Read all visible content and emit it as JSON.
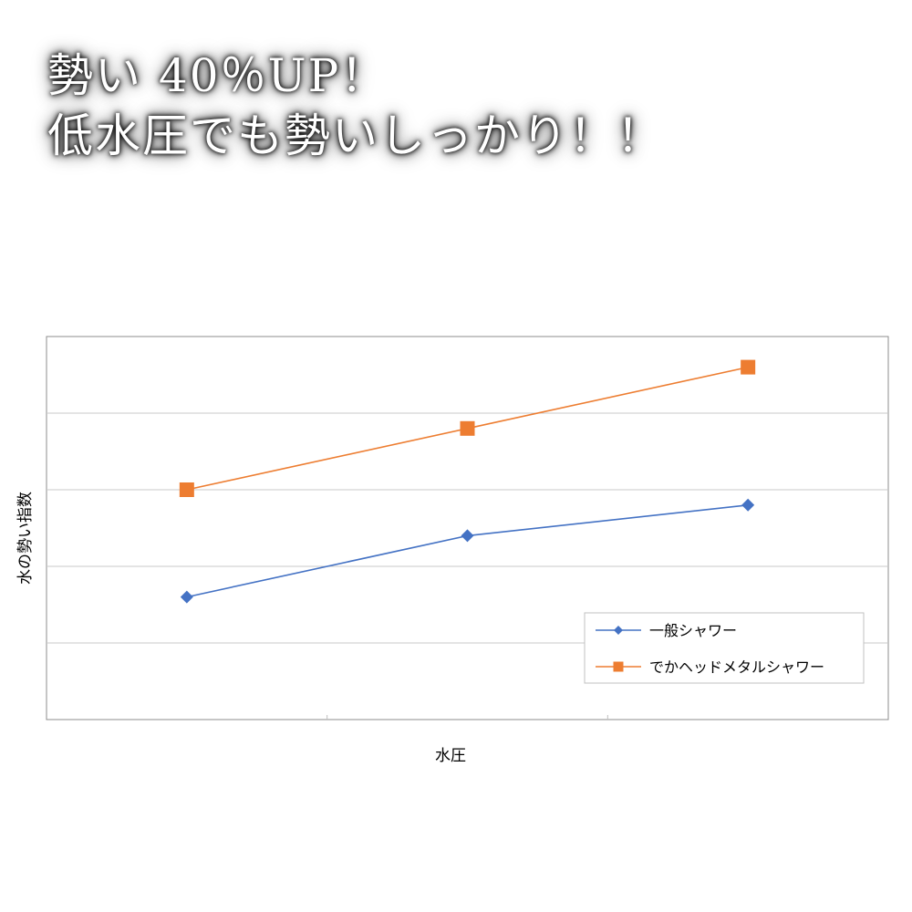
{
  "headline": {
    "line1": "勢い 40％UP！",
    "line2": "低水圧でも勢いしっかり！！"
  },
  "chart_data": {
    "type": "line",
    "title": "",
    "xlabel": "水圧",
    "ylabel": "水の勢い指数",
    "categories": [
      "",
      "",
      ""
    ],
    "ylim": [
      0,
      5
    ],
    "grid": true,
    "legend_position": "bottom-right",
    "series": [
      {
        "name": "一般シャワー",
        "values": [
          1.6,
          2.4,
          2.8
        ],
        "color": "#4472C4",
        "marker": "diamond"
      },
      {
        "name": "でかヘッドメタルシャワー",
        "values": [
          3.0,
          3.8,
          4.6
        ],
        "color": "#ED7D31",
        "marker": "square"
      }
    ]
  }
}
